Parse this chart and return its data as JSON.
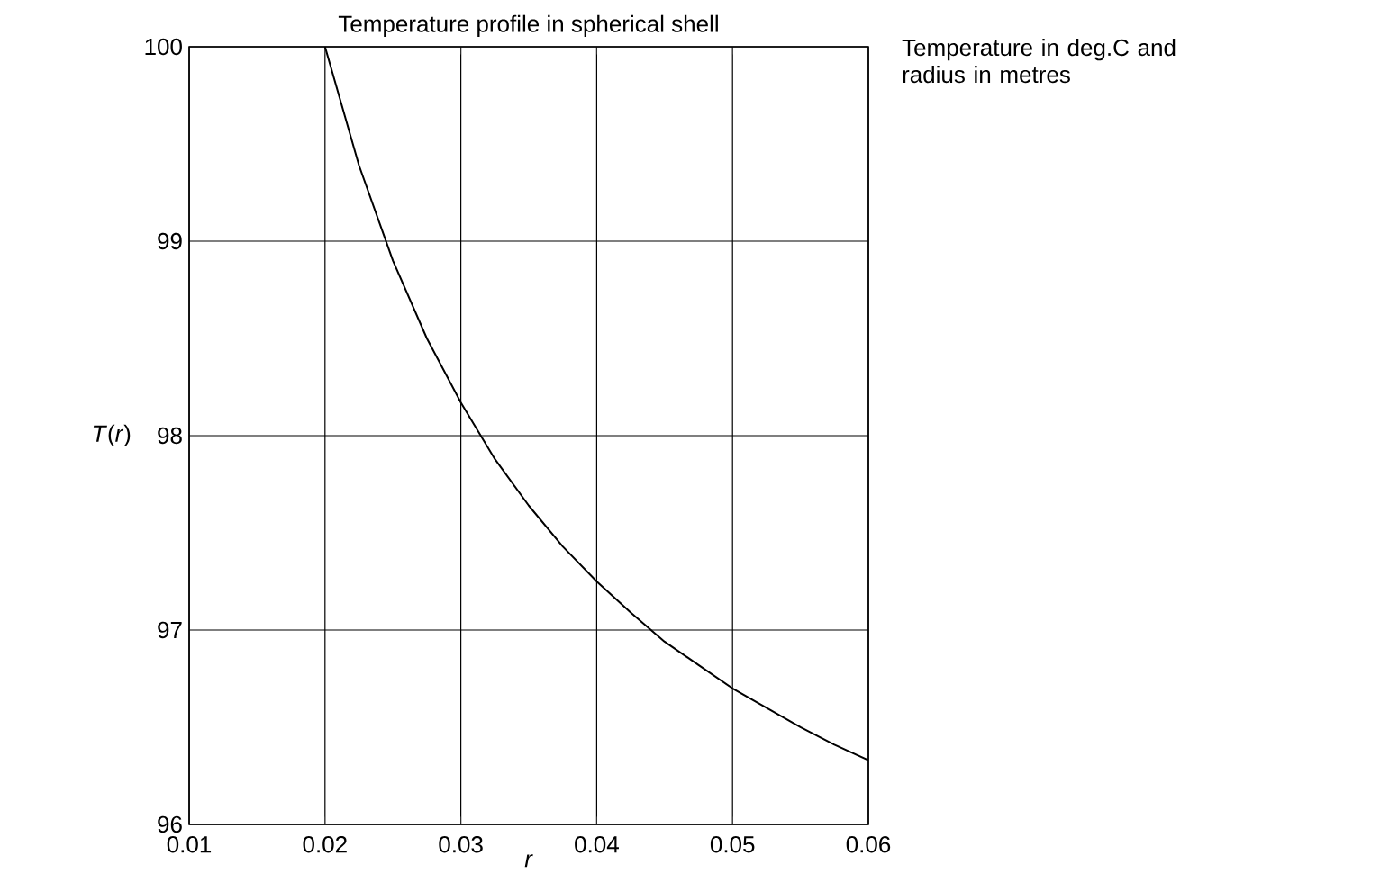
{
  "chart_data": {
    "type": "line",
    "title": "Temperature profile in spherical shell",
    "xlabel": "*r*",
    "ylabel": "*T*(*r*)",
    "annotations": [
      "Temperature in deg.C and radius in metres"
    ],
    "x": [
      0.02,
      0.0225,
      0.025,
      0.0275,
      0.03,
      0.0325,
      0.035,
      0.0375,
      0.04,
      0.0425,
      0.045,
      0.0475,
      0.05,
      0.0525,
      0.055,
      0.0575,
      0.06
    ],
    "series": [
      {
        "color": "#000000",
        "values": [
          100,
          99.39,
          98.9,
          98.5,
          98.17,
          97.88,
          97.64,
          97.43,
          97.25,
          97.09,
          96.94,
          96.82,
          96.7,
          96.6,
          96.5,
          96.41,
          96.33
        ]
      }
    ],
    "xlim": [
      0.01,
      0.06
    ],
    "ylim": [
      96,
      100
    ],
    "xticks": [
      0.01,
      0.02,
      0.03,
      0.04,
      0.05,
      0.06
    ],
    "yticks": [
      96,
      97,
      98,
      99,
      100
    ],
    "grid": true
  }
}
